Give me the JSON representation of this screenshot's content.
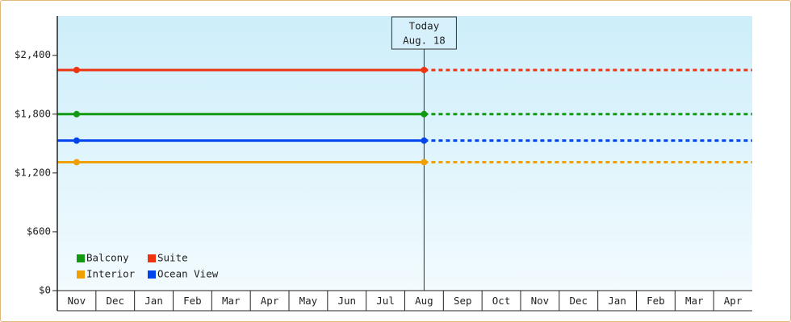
{
  "chart_data": {
    "type": "line",
    "categories": [
      "Nov",
      "Dec",
      "Jan",
      "Feb",
      "Mar",
      "Apr",
      "May",
      "Jun",
      "Jul",
      "Aug",
      "Sep",
      "Oct",
      "Nov",
      "Dec",
      "Jan",
      "Feb",
      "Mar",
      "Apr"
    ],
    "series": [
      {
        "name": "Balcony",
        "color": "#119911",
        "values": [
          1800,
          1800,
          1800,
          1800,
          1800,
          1800,
          1800,
          1800,
          1800,
          1800,
          null,
          null,
          null,
          null,
          null,
          null,
          null,
          null
        ]
      },
      {
        "name": "Suite",
        "color": "#ee3311",
        "values": [
          2250,
          2250,
          2250,
          2250,
          2250,
          2250,
          2250,
          2250,
          2250,
          2250,
          null,
          null,
          null,
          null,
          null,
          null,
          null,
          null
        ]
      },
      {
        "name": "Interior",
        "color": "#f0a000",
        "values": [
          1310,
          1310,
          1310,
          1310,
          1310,
          1310,
          1310,
          1310,
          1310,
          1310,
          null,
          null,
          null,
          null,
          null,
          null,
          null,
          null
        ]
      },
      {
        "name": "Ocean View",
        "color": "#0044ee",
        "values": [
          1530,
          1530,
          1530,
          1530,
          1530,
          1530,
          1530,
          1530,
          1530,
          1530,
          null,
          null,
          null,
          null,
          null,
          null,
          null,
          null
        ]
      }
    ],
    "ylim": [
      0,
      2800
    ],
    "yticks": [
      {
        "value": 0,
        "label": "$0"
      },
      {
        "value": 600,
        "label": "$600"
      },
      {
        "value": 1200,
        "label": "$1,200"
      },
      {
        "value": 1800,
        "label": "$1,800"
      },
      {
        "value": 2400,
        "label": "$2,400"
      }
    ],
    "annotation": {
      "title": "Today",
      "date": "Aug. 18",
      "x": "Aug"
    },
    "projection": "dashed"
  }
}
